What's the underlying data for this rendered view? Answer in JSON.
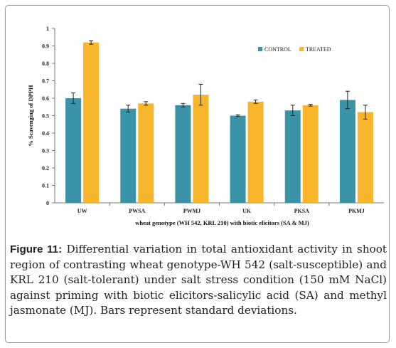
{
  "chart_data": {
    "type": "bar",
    "title": "",
    "xlabel": "wheat genotype (WH 542, KRL 210) with biotic elicitors (SA & MJ)",
    "ylabel": "% Scavenging of DPPH",
    "ylim": [
      0,
      1
    ],
    "yticks": [
      "0",
      "0.1",
      "0.2",
      "0.3",
      "0.4",
      "0.5",
      "0.6",
      "0.7",
      "0.8",
      "0.9",
      "1"
    ],
    "categories": [
      "UW",
      "PWSA",
      "PWMJ",
      "UK",
      "PKSA",
      "PKMJ"
    ],
    "legend_position": "top-right",
    "grid": false,
    "error_bars": true,
    "series": [
      {
        "name": "CONTROL",
        "color": "#3a93a6",
        "values": [
          0.6,
          0.54,
          0.56,
          0.5,
          0.53,
          0.59
        ],
        "errors": [
          0.03,
          0.02,
          0.01,
          0.005,
          0.03,
          0.05
        ]
      },
      {
        "name": "TREATED",
        "color": "#f6b52a",
        "values": [
          0.92,
          0.57,
          0.62,
          0.58,
          0.56,
          0.52
        ],
        "errors": [
          0.01,
          0.01,
          0.06,
          0.01,
          0.005,
          0.04
        ]
      }
    ]
  },
  "caption": {
    "label": "Figure 11:",
    "text": " Differential variation in total antioxidant activity in shoot region of contrasting wheat genotype-WH 542 (salt-susceptible) and KRL 210 (salt-tolerant) under salt stress condition (150 mM NaCl) against priming with biotic elicitors-salicylic acid (SA) and methyl jasmonate (MJ). Bars represent standard deviations."
  }
}
